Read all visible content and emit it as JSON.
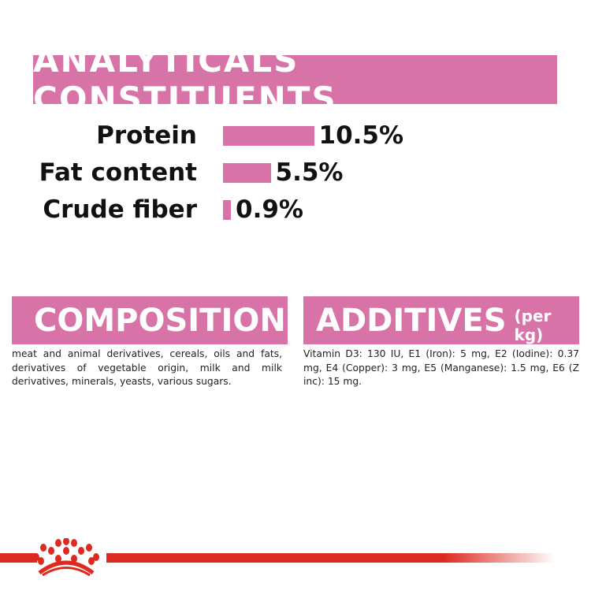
{
  "analyticals": {
    "title": "ANALYTICALS CONSTITUENTS",
    "rows": [
      {
        "label": "Protein",
        "value": "10.5%",
        "percent": 10.5
      },
      {
        "label": "Fat content",
        "value": "5.5%",
        "percent": 5.5
      },
      {
        "label": "Crude fiber",
        "value": "0.9%",
        "percent": 0.9
      }
    ]
  },
  "composition": {
    "title": "COMPOSITION",
    "text": "meat and animal derivatives, cereals, oils and fats, derivatives of vegetable origin, milk and milk derivatives, minerals, yeasts, various sugars."
  },
  "additives": {
    "title": "ADDITIVES",
    "unit": "(per kg)",
    "text": "Vitamin D3: 130 IU, E1 (Iron): 5 mg, E2 (Iodine): 0.37 mg, E4 (Copper): 3 mg, E5 (Manganese): 1.5 mg, E6 (Z inc): 15 mg."
  },
  "colors": {
    "accent": "#d873a7",
    "brand": "#dc2a20"
  }
}
